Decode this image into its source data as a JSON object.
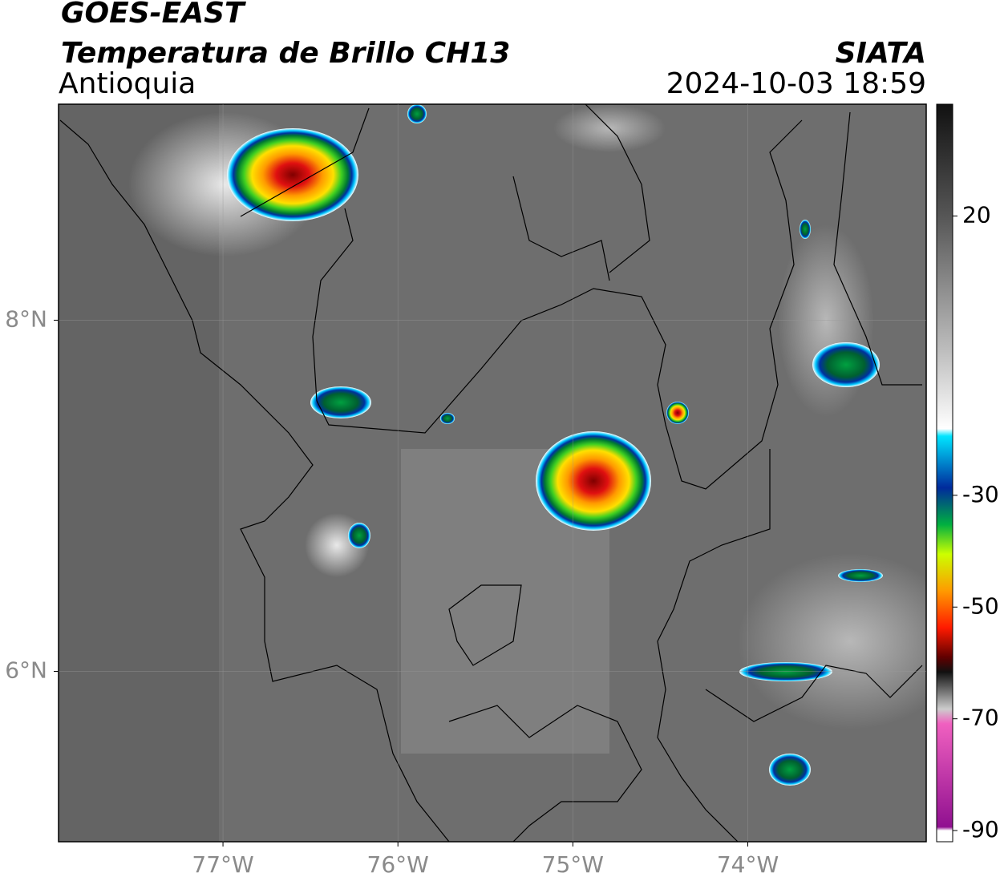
{
  "header": {
    "title": "GOES-EAST",
    "subtitle": "Temperatura de Brillo CH13",
    "region": "Antioquia",
    "source": "SIATA",
    "timestamp": "2024-10-03 18:59"
  },
  "map": {
    "xlim": [
      -77.94,
      -72.98
    ],
    "ylim": [
      5.03,
      9.23
    ],
    "xticks": [
      {
        "value": -77,
        "label": "77°W"
      },
      {
        "value": -76,
        "label": "76°W"
      },
      {
        "value": -75,
        "label": "75°W"
      },
      {
        "value": -74,
        "label": "74°W"
      }
    ],
    "yticks": [
      {
        "value": 8,
        "label": "8°N"
      },
      {
        "value": 6,
        "label": "6°N"
      }
    ]
  },
  "colorbar": {
    "lim": [
      -92,
      40
    ],
    "ticks": [
      20,
      -30,
      -50,
      -70,
      -90
    ]
  }
}
